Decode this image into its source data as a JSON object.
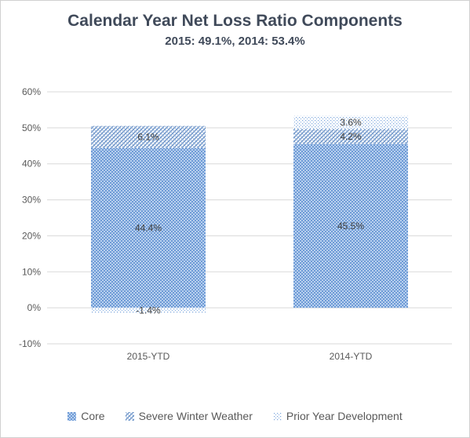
{
  "chart_data": {
    "type": "bar",
    "stacked": true,
    "title": "Calendar Year Net Loss Ratio Components",
    "subtitle": "2015: 49.1%, 2014: 53.4%",
    "categories": [
      "2015-YTD",
      "2014-YTD"
    ],
    "series": [
      {
        "name": "Core",
        "values": [
          44.4,
          45.5
        ],
        "labels": [
          "44.4%",
          "45.5%"
        ]
      },
      {
        "name": "Severe Winter Weather",
        "values": [
          6.1,
          4.2
        ],
        "labels": [
          "6.1%",
          "4.2%"
        ]
      },
      {
        "name": "Prior Year Development",
        "values": [
          -1.4,
          3.6
        ],
        "labels": [
          "-1.4%",
          "3.6%"
        ]
      }
    ],
    "ylim": [
      -10,
      60
    ],
    "yticks": [
      -10,
      0,
      10,
      20,
      30,
      40,
      50,
      60
    ],
    "ytick_labels": [
      "-10%",
      "0%",
      "10%",
      "20%",
      "30%",
      "40%",
      "50%",
      "60%"
    ],
    "xlabel": "",
    "ylabel": "",
    "grid": true,
    "legend_position": "bottom",
    "colors": {
      "core": "#7aa5dc",
      "severe": "#5b86c0",
      "prior": "#8fb3e3",
      "grid": "#d9d9d9",
      "tick_text": "#595959"
    }
  }
}
